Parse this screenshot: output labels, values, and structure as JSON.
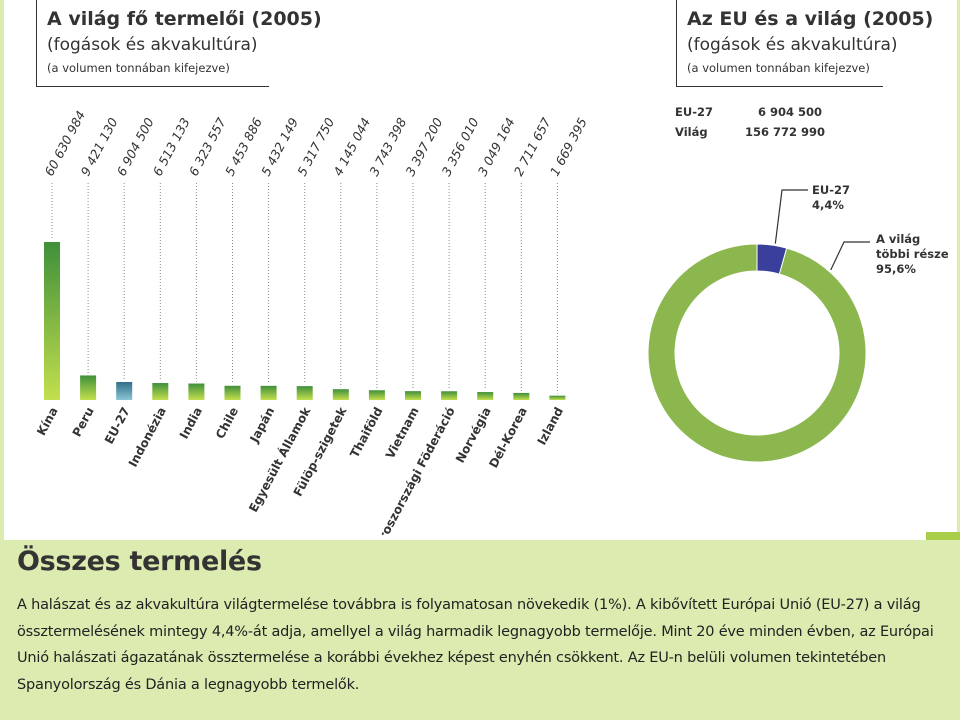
{
  "left_panel": {
    "title": "A világ fő termelői (2005)",
    "subtitle": "(fogások és akvakultúra)",
    "note": "(a volumen tonnában kifejezve)"
  },
  "right_panel": {
    "title": "Az EU és a világ (2005)",
    "subtitle": "(fogások és akvakultúra)",
    "note": "(a volumen tonnában kifejezve)",
    "stats": [
      {
        "label": "EU-27",
        "value": "6 904 500"
      },
      {
        "label": "Világ",
        "value": "156 772 990"
      }
    ]
  },
  "chart_data": [
    {
      "type": "bar",
      "categories": [
        "Kína",
        "Peru",
        "EU-27",
        "Indonézia",
        "India",
        "Chile",
        "Japán",
        "Egyesült Államok",
        "Fülöp-szigetek",
        "Thaiföld",
        "Vietnam",
        "Oroszországi Föderáció",
        "Norvégia",
        "Dél-Korea",
        "Izland"
      ],
      "values": [
        60630984,
        9421130,
        6904500,
        6513133,
        6323557,
        5453886,
        5432149,
        5317750,
        4145044,
        3743398,
        3397200,
        3356010,
        3049164,
        2711657,
        1669395
      ],
      "value_labels": [
        "60 630 984",
        "9 421 130",
        "6 904 500",
        "6 513 133",
        "6 323 557",
        "5 453 886",
        "5 432 149",
        "5 317 750",
        "4 145 044",
        "3 743 398",
        "3 397 200",
        "3 356 010",
        "3 049 164",
        "2 711 657",
        "1 669 395"
      ],
      "highlight_category": "EU-27",
      "colors": {
        "bar_top": "#3f8f3a",
        "bar_bottom": "#c3df4e",
        "highlight_top": "#2f6f86",
        "highlight_bottom": "#8cc4d6",
        "guide": "#8a8a8a"
      }
    },
    {
      "type": "pie",
      "style": "donut",
      "slices": [
        {
          "label": "EU-27",
          "value": 4.4,
          "display": "4,4%",
          "color": "#3a3f9c"
        },
        {
          "label": "A világ többi része",
          "value": 95.6,
          "display": "95,6%",
          "color": "#8bb74e"
        }
      ],
      "slice_labels": {
        "eu": {
          "line1": "EU-27",
          "line2": "4,4%"
        },
        "rest": {
          "line1": "A világ",
          "line2": "többi része",
          "line3": "95,6%"
        }
      }
    }
  ],
  "bottom": {
    "heading": "Összes termelés",
    "paragraph": "A halászat és az akvakultúra világtermelése továbbra is folyamatosan növekedik (1%). A kibővített Európai Unió (EU-27) a világ össztermelésének mintegy 4,4%-át adja, amellyel a világ harmadik legnagyobb termelője. Mint 20 éve minden évben, az Európai Unió halászati ágazatának össztermelése a korábbi évekhez képest enyhén csökkent. Az EU-n belüli volumen tekintetében Spanyolország és Dánia a legnagyobb termelők."
  }
}
